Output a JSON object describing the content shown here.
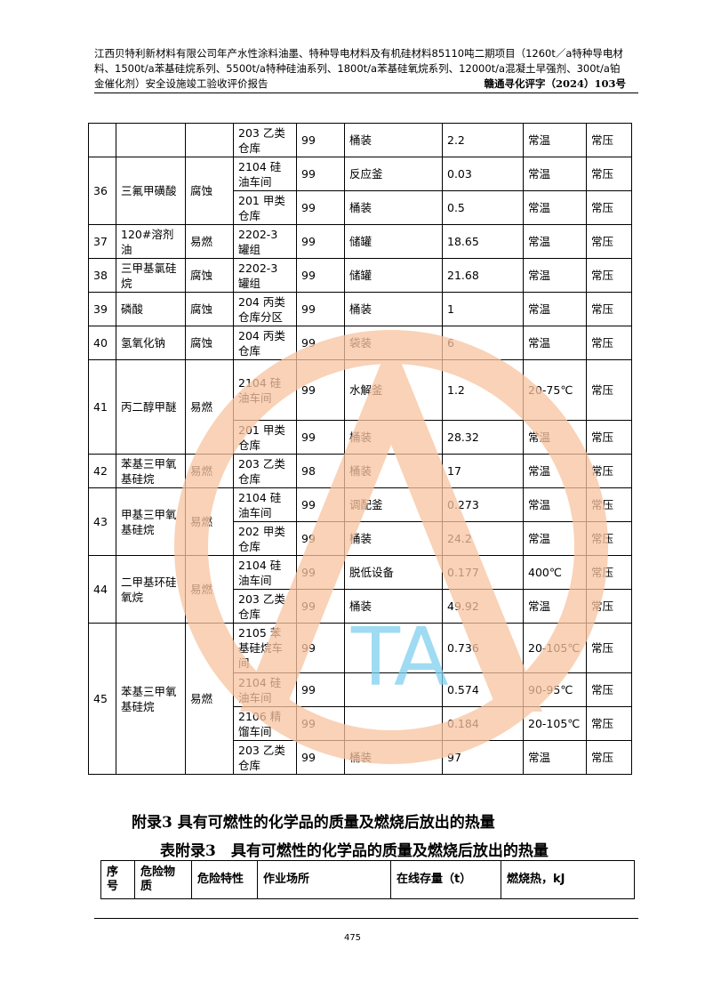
{
  "header": {
    "title": "江西贝特利新材料有限公司年产水性涂料油墨、特种导电材料及有机硅材料85110吨二期项目（1260t／a特种导电材料、1500t/a苯基硅烷系列、5500t/a特种硅油系列、1800t/a苯基硅氧烷系列、12000t/a混凝土早强剂、300t/a铂金催化剂）安全设施竣工验收评价报告",
    "doc_number": "赣通寻化评字（2024）103号"
  },
  "table": {
    "groups": [
      {
        "no": "",
        "name": "",
        "hazard": "",
        "rows": [
          {
            "place": "203 乙类仓库",
            "purity": "99",
            "mode": "桶装",
            "qty": "2.2",
            "temp": "常温",
            "pressure": "常压",
            "h": 38
          }
        ]
      },
      {
        "no": "36",
        "name": "三氟甲磺酸",
        "hazard": "腐蚀",
        "rows": [
          {
            "place": "2104 硅油车间",
            "purity": "99",
            "mode": "反应釜",
            "qty": "0.03",
            "temp": "常温",
            "pressure": "常压",
            "h": 38
          },
          {
            "place": "201 甲类仓库",
            "purity": "99",
            "mode": "桶装",
            "qty": "0.5",
            "temp": "常温",
            "pressure": "常压",
            "h": 38
          }
        ]
      },
      {
        "no": "37",
        "name": "120#溶剂油",
        "hazard": "易燃",
        "rows": [
          {
            "place": "2202-3 罐组",
            "purity": "99",
            "mode": "储罐",
            "qty": "18.65",
            "temp": "常温",
            "pressure": "常压",
            "h": 38
          }
        ]
      },
      {
        "no": "38",
        "name": "三甲基氯硅烷",
        "hazard": "腐蚀",
        "rows": [
          {
            "place": "2202-3 罐组",
            "purity": "99",
            "mode": "储罐",
            "qty": "21.68",
            "temp": "常温",
            "pressure": "常压",
            "h": 38
          }
        ]
      },
      {
        "no": "39",
        "name": "磷酸",
        "hazard": "腐蚀",
        "rows": [
          {
            "place": "204 丙类仓库分区",
            "purity": "99",
            "mode": "桶装",
            "qty": "1",
            "temp": "常温",
            "pressure": "常压",
            "h": 38
          }
        ]
      },
      {
        "no": "40",
        "name": "氢氧化钠",
        "hazard": "腐蚀",
        "rows": [
          {
            "place": "204 丙类仓库",
            "purity": "99",
            "mode": "袋装",
            "qty": "6",
            "temp": "常温",
            "pressure": "常压",
            "h": 38
          }
        ]
      },
      {
        "no": "41",
        "name": "丙二醇甲醚",
        "hazard": "易燃",
        "rows": [
          {
            "place": "2104 硅油车间",
            "purity": "99",
            "mode": "水解釜",
            "qty": "1.2",
            "temp": "20-75℃",
            "pressure": "常压",
            "h": 68
          },
          {
            "place": "201 甲类仓库",
            "purity": "99",
            "mode": "桶装",
            "qty": "28.32",
            "temp": "常温",
            "pressure": "常压",
            "h": 38
          }
        ]
      },
      {
        "no": "42",
        "name": "苯基三甲氧基硅烷",
        "hazard": "易燃",
        "rows": [
          {
            "place": "203 乙类仓库",
            "purity": "98",
            "mode": "桶装",
            "qty": "17",
            "temp": "常温",
            "pressure": "常压",
            "h": 38
          }
        ]
      },
      {
        "no": "43",
        "name": "甲基三甲氧基硅烷",
        "hazard": "易燃",
        "rows": [
          {
            "place": "2104 硅油车间",
            "purity": "99",
            "mode": "调配釜",
            "qty": "0.273",
            "temp": "常温",
            "pressure": "常压",
            "h": 38
          },
          {
            "place": "202 甲类仓库",
            "purity": "99",
            "mode": "桶装",
            "qty": "24.2",
            "temp": "常温",
            "pressure": "常压",
            "h": 38
          }
        ]
      },
      {
        "no": "44",
        "name": "二甲基环硅氧烷",
        "hazard": "易燃",
        "rows": [
          {
            "place": "2104 硅油车间",
            "purity": "99",
            "mode": "脱低设备",
            "qty": "0.177",
            "temp": "400℃",
            "pressure": "常压",
            "h": 38
          },
          {
            "place": "203 乙类仓库",
            "purity": "99",
            "mode": "桶装",
            "qty": "49.92",
            "temp": "常温",
            "pressure": "常压",
            "h": 38
          }
        ]
      },
      {
        "no": "45",
        "name": "苯基三甲氧基硅烷",
        "hazard": "易燃",
        "rows": [
          {
            "place": "2105 苯基硅烷车间",
            "purity": "99",
            "mode": "",
            "qty": "0.736",
            "temp": "20-105℃",
            "pressure": "常压",
            "h": 56
          },
          {
            "place": "2104 硅油车间",
            "purity": "99",
            "mode": "",
            "qty": "0.574",
            "temp": "90-95℃",
            "pressure": "常压",
            "h": 38
          },
          {
            "place": "2106 精馏车间",
            "purity": "99",
            "mode": "",
            "qty": "0.184",
            "temp": "20-105℃",
            "pressure": "常压",
            "h": 38
          },
          {
            "place": "203 乙类仓库",
            "purity": "99",
            "mode": "桶装",
            "qty": "97",
            "temp": "常温",
            "pressure": "常压",
            "h": 38
          }
        ]
      }
    ]
  },
  "appendix": {
    "heading": "附录3 具有可燃性的化学品的质量及燃烧后放出的热量",
    "table_title": "表附录3　具有可燃性的化学品的质量及燃烧后放出的热量",
    "columns": [
      "序号",
      "危险物质",
      "危险特性",
      "作业场所",
      "在线存量（t）",
      "燃烧热，kJ"
    ]
  },
  "footer": {
    "page_number": "475"
  },
  "watermark": {
    "letters": "TA",
    "ring_color": "#f8c3a0",
    "text_color": "#c8c8c8",
    "letter_color": "#7fd0f0"
  }
}
